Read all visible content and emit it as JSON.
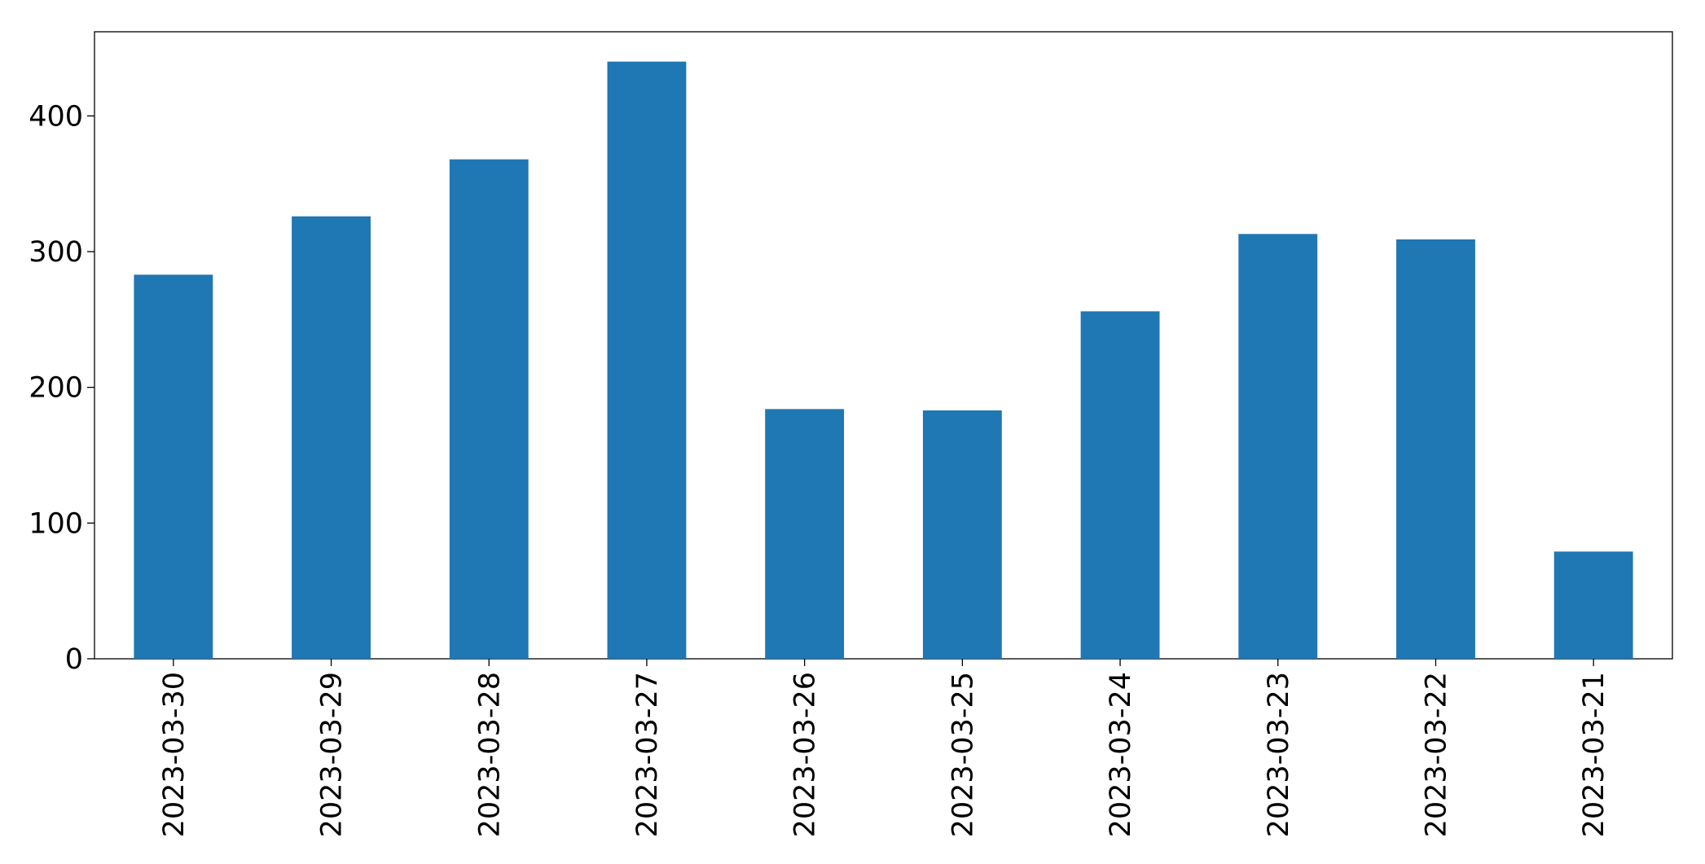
{
  "chart_data": {
    "type": "bar",
    "categories": [
      "2023-03-30",
      "2023-03-29",
      "2023-03-28",
      "2023-03-27",
      "2023-03-26",
      "2023-03-25",
      "2023-03-24",
      "2023-03-23",
      "2023-03-22",
      "2023-03-21"
    ],
    "values": [
      283,
      326,
      368,
      440,
      184,
      183,
      256,
      313,
      309,
      79
    ],
    "color": "#1f77b4",
    "ylim": [
      0,
      462
    ],
    "yticks": [
      0,
      100,
      200,
      300,
      400
    ],
    "grid": false
  }
}
